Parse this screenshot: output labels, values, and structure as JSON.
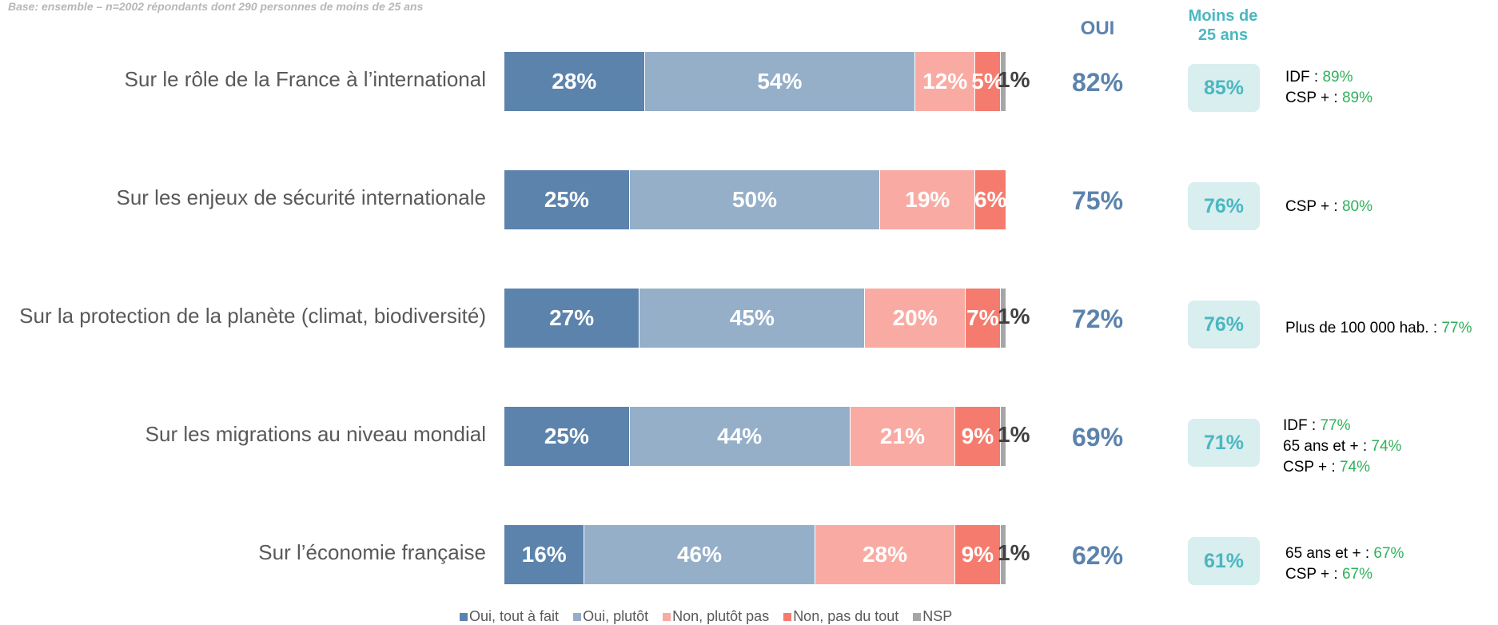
{
  "base_note": "Base: ensemble – n=2002 répondants dont 290 personnes de moins de 25 ans",
  "headers": {
    "oui": "OUI",
    "young_line1": "Moins de",
    "young_line2": "25 ans"
  },
  "colors": {
    "oui_tout_a_fait": "#5b83ac",
    "oui_plutot": "#95afc9",
    "non_plutot_pas": "#f9aba3",
    "non_pas_du_tout": "#f57b6e",
    "nsp": "#a6a6a6",
    "notes_value": "#2fb15a",
    "young_accent": "#4bb7c0"
  },
  "chart_data": {
    "type": "bar",
    "orientation": "horizontal",
    "stacked": true,
    "categories": [
      "Sur le rôle de la France à l’international",
      "Sur les enjeux de sécurité internationale",
      "Sur la protection de la planète (climat, biodiversité)",
      "Sur les migrations au niveau mondial",
      "Sur l’économie française"
    ],
    "series": [
      {
        "name": "Oui, tout à fait",
        "values": [
          28,
          25,
          27,
          25,
          16
        ],
        "labels": [
          "28%",
          "25%",
          "27%",
          "25%",
          "16%"
        ]
      },
      {
        "name": "Oui, plutôt",
        "values": [
          54,
          50,
          45,
          44,
          46
        ],
        "labels": [
          "54%",
          "50%",
          "45%",
          "44%",
          "46%"
        ]
      },
      {
        "name": "Non, plutôt pas",
        "values": [
          12,
          19,
          20,
          21,
          28
        ],
        "labels": [
          "12%",
          "19%",
          "20%",
          "21%",
          "28%"
        ]
      },
      {
        "name": "Non, pas du tout",
        "values": [
          5,
          6,
          7,
          9,
          9
        ],
        "labels": [
          "5%",
          "6%",
          "7%",
          "9%",
          "9%"
        ]
      },
      {
        "name": "NSP",
        "values": [
          1,
          0,
          1,
          1,
          1
        ],
        "labels": [
          "1%",
          "",
          "1%",
          "1%",
          "1%"
        ]
      }
    ],
    "oui_totals": [
      "82%",
      "75%",
      "72%",
      "69%",
      "62%"
    ],
    "moins_25_ans": [
      "85%",
      "76%",
      "76%",
      "71%",
      "61%"
    ],
    "notes": [
      [
        {
          "label": "IDF : ",
          "value": "89%"
        },
        {
          "label": "CSP + : ",
          "value": "89%"
        }
      ],
      [
        {
          "label": "CSP + : ",
          "value": "80%"
        }
      ],
      [
        {
          "label": "Plus de 100 000 hab. : ",
          "value": "77%"
        }
      ],
      [
        {
          "label": "IDF : ",
          "value": "77%"
        },
        {
          "label": "65 ans et + : ",
          "value": "74%"
        },
        {
          "label": "CSP + : ",
          "value": "74%"
        }
      ],
      [
        {
          "label": "65 ans et + : ",
          "value": "67%"
        },
        {
          "label": "CSP + : ",
          "value": "67%"
        }
      ]
    ],
    "legend_position": "bottom"
  }
}
